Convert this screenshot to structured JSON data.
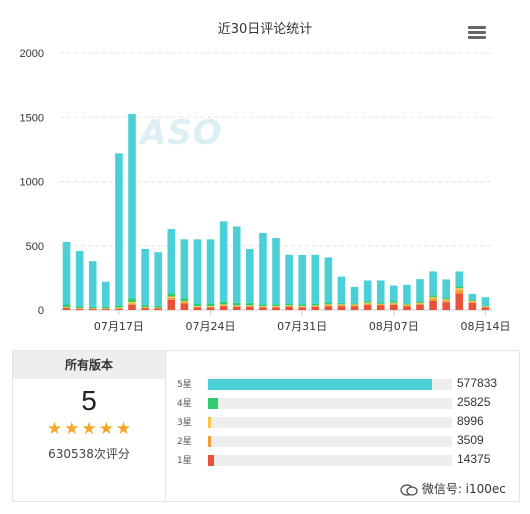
{
  "chart_data": {
    "type": "bar",
    "stacked": true,
    "title": "近30日评论统计",
    "ylim": [
      0,
      2000
    ],
    "yticks": [
      "0",
      "500",
      "1000",
      "1500",
      "2000"
    ],
    "x_tick_labels": [
      "07月17日",
      "07月24日",
      "07月31日",
      "08月07日",
      "08月14日"
    ],
    "x_tick_positions": [
      4,
      11,
      18,
      25,
      32
    ],
    "n_bars": 33,
    "grid": true,
    "series": [
      {
        "name": "1星",
        "color": "#e8523a",
        "values": [
          15,
          10,
          8,
          8,
          10,
          40,
          15,
          12,
          80,
          50,
          20,
          20,
          30,
          25,
          25,
          20,
          20,
          25,
          20,
          25,
          30,
          30,
          30,
          40,
          35,
          40,
          30,
          40,
          70,
          60,
          130,
          55,
          20
        ]
      },
      {
        "name": "2星",
        "color": "#f39c35",
        "values": [
          4,
          3,
          3,
          3,
          4,
          12,
          4,
          3,
          15,
          12,
          5,
          5,
          8,
          6,
          6,
          5,
          5,
          6,
          5,
          6,
          8,
          8,
          8,
          10,
          8,
          10,
          8,
          10,
          20,
          15,
          25,
          10,
          5
        ]
      },
      {
        "name": "3星",
        "color": "#f6c64a",
        "values": [
          4,
          3,
          3,
          3,
          5,
          10,
          4,
          3,
          10,
          8,
          5,
          5,
          6,
          5,
          5,
          5,
          5,
          5,
          5,
          5,
          6,
          6,
          5,
          6,
          5,
          6,
          5,
          6,
          10,
          8,
          15,
          6,
          3
        ]
      },
      {
        "name": "4星",
        "color": "#2ecc71",
        "values": [
          20,
          12,
          10,
          12,
          15,
          30,
          15,
          15,
          25,
          22,
          20,
          20,
          20,
          20,
          20,
          15,
          15,
          15,
          15,
          12,
          15,
          12,
          10,
          12,
          10,
          10,
          8,
          10,
          15,
          10,
          15,
          10,
          6
        ]
      },
      {
        "name": "5星",
        "color": "#4cd0d8",
        "values": [
          487,
          432,
          356,
          194,
          1185,
          1434,
          437,
          417,
          500,
          458,
          500,
          500,
          626,
          594,
          419,
          555,
          515,
          379,
          383,
          382,
          350,
          204,
          127,
          162,
          172,
          124,
          145,
          174,
          185,
          145,
          115,
          44,
          66
        ]
      }
    ]
  },
  "summary": {
    "header": "所有版本",
    "average": "5",
    "stars": [
      "★",
      "★",
      "★",
      "★",
      "★"
    ],
    "total_label": "630538次评分",
    "rows": [
      {
        "label": "5星",
        "count": "577833",
        "fraction": 0.916,
        "color": "#4cd0d8"
      },
      {
        "label": "4星",
        "count": "25825",
        "fraction": 0.041,
        "color": "#2ecc71"
      },
      {
        "label": "3星",
        "count": "8996",
        "fraction": 0.014,
        "color": "#f6c64a"
      },
      {
        "label": "2星",
        "count": "3509",
        "fraction": 0.006,
        "color": "#f39c35"
      },
      {
        "label": "1星",
        "count": "14375",
        "fraction": 0.023,
        "color": "#e8523a"
      }
    ]
  },
  "watermark": "ASO",
  "wechat": "微信号: i100ec"
}
